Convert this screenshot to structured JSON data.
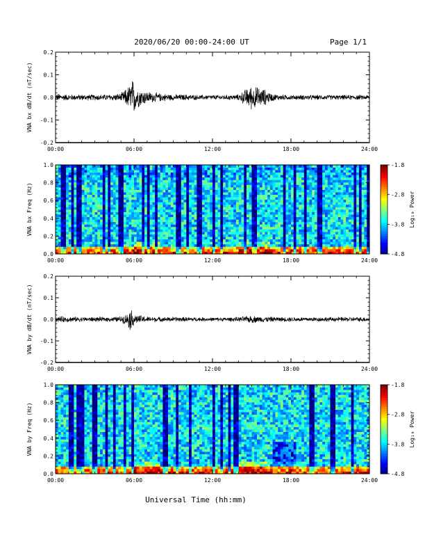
{
  "header": {
    "title": "2020/06/20  00:00-24:00 UT",
    "page": "Page 1/1"
  },
  "footer": {
    "xlabel": "Universal Time (hh:mm)"
  },
  "chart_data": [
    {
      "type": "line",
      "ylabel": "VNA bx dB/dt (nT/sec)",
      "xlim": [
        0,
        24
      ],
      "ylim": [
        -0.2,
        0.2
      ],
      "x_ticks": [
        "00:00",
        "06:00",
        "12:00",
        "18:00",
        "24:00"
      ],
      "y_ticks": [
        "-0.2",
        "-0.1",
        "0.0",
        "0.1",
        "0.2"
      ],
      "series": [
        {
          "x": [
            0,
            1,
            2,
            3,
            4,
            5,
            5.5,
            5.7,
            5.9,
            6.1,
            6.3,
            7,
            8,
            9,
            10,
            11,
            12,
            13,
            14,
            14.5,
            15,
            15.5,
            16,
            16.5,
            17,
            18,
            19,
            20,
            21,
            22,
            23,
            24
          ],
          "envelope": [
            0.02,
            0.015,
            0.015,
            0.015,
            0.015,
            0.02,
            0.05,
            0.07,
            0.09,
            0.07,
            0.05,
            0.03,
            0.02,
            0.015,
            0.015,
            0.012,
            0.012,
            0.012,
            0.015,
            0.04,
            0.06,
            0.05,
            0.04,
            0.02,
            0.015,
            0.012,
            0.012,
            0.012,
            0.012,
            0.012,
            0.012,
            0.012
          ]
        }
      ]
    },
    {
      "type": "heatmap",
      "ylabel": "VNA bx Freq (Hz)",
      "xlim": [
        0,
        24
      ],
      "ylim": [
        0,
        1.0
      ],
      "x_ticks": [
        "00:00",
        "06:00",
        "12:00",
        "18:00",
        "24:00"
      ],
      "y_ticks": [
        "0.0",
        "0.2",
        "0.4",
        "0.6",
        "0.8",
        "1.0"
      ],
      "colorbar": {
        "label": "Log₁₀ Power",
        "ticks": [
          "-1.8",
          "-2.8",
          "-3.8",
          "-4.8"
        ],
        "range": [
          -4.8,
          -1.8
        ]
      }
    },
    {
      "type": "line",
      "ylabel": "VNA by dB/dt (nT/sec)",
      "xlim": [
        0,
        24
      ],
      "ylim": [
        -0.2,
        0.2
      ],
      "x_ticks": [
        "00:00",
        "06:00",
        "12:00",
        "18:00",
        "24:00"
      ],
      "y_ticks": [
        "-0.2",
        "-0.1",
        "0.0",
        "0.1",
        "0.2"
      ],
      "series": [
        {
          "x": [
            0,
            1,
            2,
            3,
            4,
            5,
            5.5,
            5.7,
            5.9,
            6.1,
            6.5,
            7,
            8,
            9,
            10,
            11,
            12,
            13,
            14,
            15,
            15.5,
            16,
            17,
            18,
            19,
            20,
            21,
            22,
            23,
            24
          ],
          "envelope": [
            0.015,
            0.015,
            0.012,
            0.012,
            0.012,
            0.015,
            0.03,
            0.06,
            0.04,
            0.025,
            0.02,
            0.015,
            0.012,
            0.012,
            0.012,
            0.01,
            0.01,
            0.01,
            0.012,
            0.02,
            0.015,
            0.015,
            0.012,
            0.012,
            0.012,
            0.012,
            0.012,
            0.012,
            0.012,
            0.012
          ]
        }
      ]
    },
    {
      "type": "heatmap",
      "ylabel": "VNA by Freq (Hz)",
      "xlim": [
        0,
        24
      ],
      "ylim": [
        0,
        1.0
      ],
      "x_ticks": [
        "00:00",
        "06:00",
        "12:00",
        "18:00",
        "24:00"
      ],
      "y_ticks": [
        "0.0",
        "0.2",
        "0.4",
        "0.6",
        "0.8",
        "1.0"
      ],
      "colorbar": {
        "label": "Log₁₀ Power",
        "ticks": [
          "-1.8",
          "-2.8",
          "-3.8",
          "-4.8"
        ],
        "range": [
          -4.8,
          -1.8
        ]
      }
    }
  ]
}
